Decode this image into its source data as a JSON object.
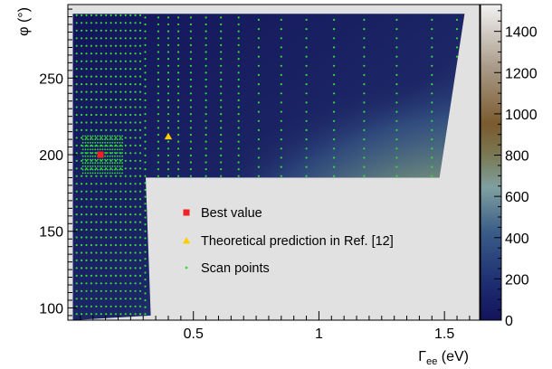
{
  "chart_data": {
    "type": "heatmap",
    "title": "",
    "xlabel": "Γee (eV)",
    "xlabel_main": "Γ",
    "xlabel_sub": "ee",
    "xlabel_unit": " (eV)",
    "ylabel": "φ (°)",
    "xlim": [
      0.0,
      1.64
    ],
    "ylim": [
      92,
      298
    ],
    "x_ticks": [
      0.5,
      1,
      1.5
    ],
    "x_tick_labels": [
      "0.5",
      "1",
      "1.5"
    ],
    "y_ticks": [
      100,
      150,
      200,
      250
    ],
    "y_tick_labels": [
      "100",
      "150",
      "200",
      "250"
    ],
    "colorbar": {
      "range": [
        0,
        1530
      ],
      "ticks": [
        0,
        200,
        400,
        600,
        800,
        1000,
        1200,
        1400
      ],
      "tick_labels": [
        "0",
        "200",
        "400",
        "600",
        "800",
        "1000",
        "1200",
        "1400"
      ]
    },
    "scanned_region": [
      [
        0.02,
        92
      ],
      [
        0.02,
        292
      ],
      [
        1.58,
        292
      ],
      [
        1.48,
        185
      ],
      [
        0.31,
        185
      ],
      [
        0.33,
        95
      ],
      [
        0.02,
        92
      ]
    ],
    "best_value": {
      "x": 0.13,
      "y": 200
    },
    "theory_prediction": {
      "x": 0.4,
      "y": 212
    },
    "legend": {
      "position": "center",
      "entries": [
        {
          "label": "Best value",
          "marker": "square",
          "color": "#ee2222"
        },
        {
          "label": "Theoretical prediction in Ref. [12]",
          "marker": "triangle",
          "color": "#ffcc00"
        },
        {
          "label": "Scan points",
          "marker": "dot",
          "color": "#33dd33"
        }
      ]
    },
    "colors": {
      "low": "#13145a",
      "mid": "#7fa0a0",
      "high_brown": "#7a5a2e",
      "top": "#f2f2f2",
      "scan_points": "#33dd33",
      "unscanned": "#e1e1e1"
    }
  }
}
